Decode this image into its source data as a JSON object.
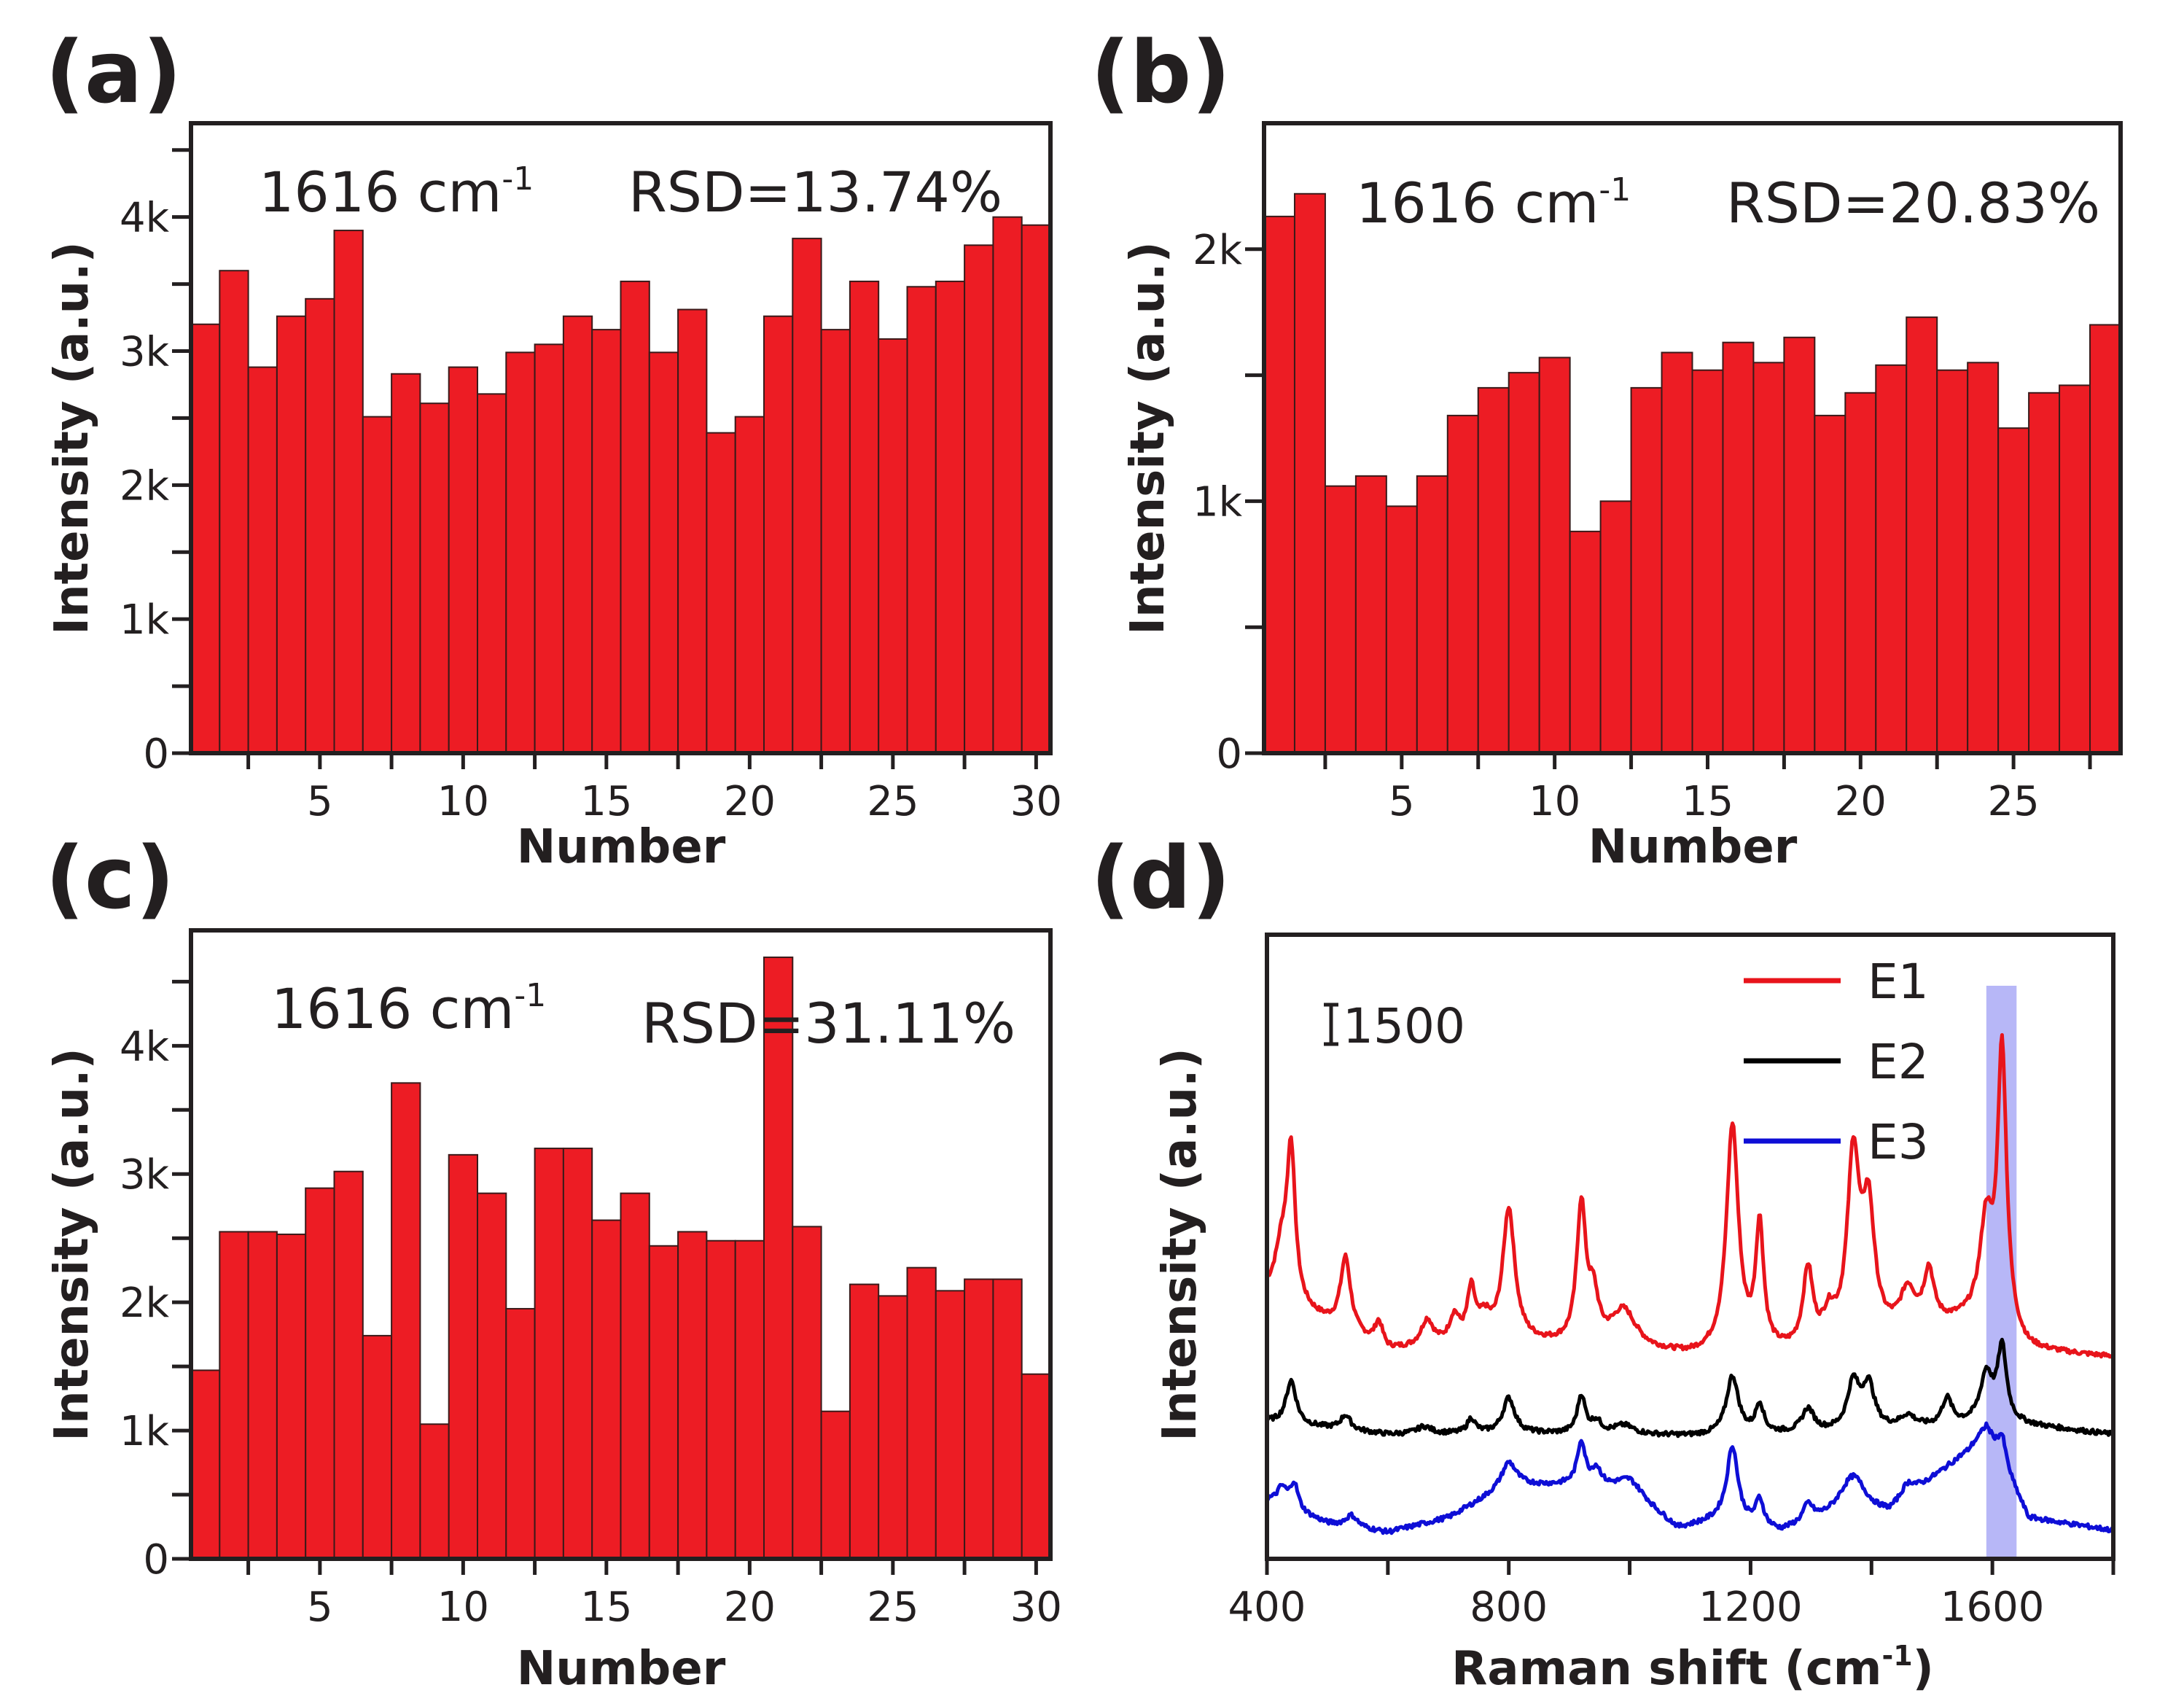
{
  "figure": {
    "colors": {
      "bar_fill": "#ed1c24",
      "text": "#231f20",
      "highlight_band": "#b3b3f7"
    }
  },
  "chart_data": [
    {
      "id": "a",
      "type": "bar",
      "panel_label": "(a)",
      "annotation_wavenumber": "1616 cm",
      "annotation_sup": "-1",
      "annotation_rsd": "RSD=13.74%",
      "xlabel": "Number",
      "ylabel": "Intensity (a.u.)",
      "xlim": [
        0.5,
        30.5
      ],
      "ylim": [
        0,
        4700
      ],
      "x_tick_labels": [
        "5",
        "10",
        "15",
        "20",
        "25",
        "30"
      ],
      "x_tick_values": [
        5,
        10,
        15,
        20,
        25,
        30
      ],
      "x_minor_ticks": [
        2.5,
        7.5,
        12.5,
        17.5,
        22.5,
        27.5
      ],
      "y_tick_labels": [
        "0",
        "1k",
        "2k",
        "3k",
        "4k"
      ],
      "y_tick_values": [
        0,
        1000,
        2000,
        3000,
        4000
      ],
      "y_minor_ticks": [
        500,
        1500,
        2500,
        3500,
        4500
      ],
      "categories": [
        1,
        2,
        3,
        4,
        5,
        6,
        7,
        8,
        9,
        10,
        11,
        12,
        13,
        14,
        15,
        16,
        17,
        18,
        19,
        20,
        21,
        22,
        23,
        24,
        25,
        26,
        27,
        28,
        29,
        30
      ],
      "values": [
        3200,
        3600,
        2880,
        3260,
        3390,
        3900,
        2510,
        2830,
        2610,
        2880,
        2680,
        2990,
        3050,
        3260,
        3160,
        3520,
        2990,
        3310,
        2390,
        2510,
        3260,
        3840,
        3160,
        3520,
        3090,
        3480,
        3520,
        3790,
        4000,
        3940
      ],
      "grid": false
    },
    {
      "id": "b",
      "type": "bar",
      "panel_label": "(b)",
      "annotation_wavenumber": "1616 cm",
      "annotation_sup": "-1",
      "annotation_rsd": "RSD=20.83%",
      "xlabel": "Number",
      "ylabel": "Intensity (a.u.)",
      "xlim": [
        0.5,
        28.5
      ],
      "ylim": [
        0,
        2500
      ],
      "x_tick_labels": [
        "5",
        "10",
        "15",
        "20",
        "25"
      ],
      "x_tick_values": [
        5,
        10,
        15,
        20,
        25
      ],
      "x_minor_ticks": [
        2.5,
        7.5,
        12.5,
        17.5,
        22.5,
        27.5
      ],
      "y_tick_labels": [
        "0",
        "1k",
        "2k"
      ],
      "y_tick_values": [
        0,
        1000,
        2000
      ],
      "y_minor_ticks": [
        500,
        1500
      ],
      "categories": [
        1,
        2,
        3,
        4,
        5,
        6,
        7,
        8,
        9,
        10,
        11,
        12,
        13,
        14,
        15,
        16,
        17,
        18,
        19,
        20,
        21,
        22,
        23,
        24,
        25,
        26,
        27,
        28
      ],
      "values": [
        2130,
        2220,
        1060,
        1100,
        980,
        1100,
        1340,
        1450,
        1510,
        1570,
        880,
        1000,
        1450,
        1590,
        1520,
        1630,
        1550,
        1650,
        1340,
        1430,
        1540,
        1730,
        1520,
        1550,
        1290,
        1430,
        1460,
        1700
      ],
      "grid": false
    },
    {
      "id": "c",
      "type": "bar",
      "panel_label": "(c)",
      "annotation_wavenumber": "1616 cm",
      "annotation_sup": "-1",
      "annotation_rsd": "RSD=31.11%",
      "xlabel": "Number",
      "ylabel": "Intensity (a.u.)",
      "xlim": [
        0.5,
        30.5
      ],
      "ylim": [
        0,
        4900
      ],
      "x_tick_labels": [
        "5",
        "10",
        "15",
        "20",
        "25",
        "30"
      ],
      "x_tick_values": [
        5,
        10,
        15,
        20,
        25,
        30
      ],
      "x_minor_ticks": [
        2.5,
        7.5,
        12.5,
        17.5,
        22.5,
        27.5
      ],
      "y_tick_labels": [
        "0",
        "1k",
        "2k",
        "3k",
        "4k"
      ],
      "y_tick_values": [
        0,
        1000,
        2000,
        3000,
        4000
      ],
      "y_minor_ticks": [
        500,
        1500,
        2500,
        3500,
        4500
      ],
      "categories": [
        1,
        2,
        3,
        4,
        5,
        6,
        7,
        8,
        9,
        10,
        11,
        12,
        13,
        14,
        15,
        16,
        17,
        18,
        19,
        20,
        21,
        22,
        23,
        24,
        25,
        26,
        27,
        28,
        29,
        30
      ],
      "values": [
        1470,
        2550,
        2550,
        2530,
        2890,
        3020,
        1740,
        3710,
        1050,
        3150,
        2850,
        1950,
        3200,
        3200,
        2640,
        2850,
        2440,
        2550,
        2480,
        2480,
        4690,
        2590,
        1150,
        2140,
        2050,
        2270,
        2090,
        2180,
        2180,
        1440
      ],
      "grid": false
    },
    {
      "id": "d",
      "type": "line",
      "panel_label": "(d)",
      "xlabel": "Raman shift (cm",
      "xlabel_sup": "-1",
      "xlabel_end": ")",
      "ylabel": "Intensity (a.u.)",
      "xlim": [
        400,
        1800
      ],
      "ylim": [
        0,
        21400
      ],
      "x_tick_labels": [
        "400",
        "800",
        "1200",
        "1600"
      ],
      "x_tick_values": [
        400,
        800,
        1200,
        1600
      ],
      "x_minor_ticks": [
        600,
        1000,
        1400,
        1800
      ],
      "scale_bar_label": "1500",
      "scale_bar_value": 1500,
      "highlight_range": [
        1590,
        1640
      ],
      "grid": false,
      "legend_position": "top-right",
      "series": [
        {
          "name": "E1",
          "color": "#e8141b",
          "baseline": [
            [
              400,
              9000
            ],
            [
              600,
              7100
            ],
            [
              800,
              7400
            ],
            [
              1000,
              7100
            ],
            [
              1100,
              6900
            ],
            [
              1300,
              7000
            ],
            [
              1500,
              7900
            ],
            [
              1580,
              8200
            ],
            [
              1660,
              7100
            ],
            [
              1800,
              6900
            ]
          ],
          "peaks": [
            [
              425,
              1800,
              14
            ],
            [
              440,
              5000,
              8
            ],
            [
              530,
              2500,
              10
            ],
            [
              585,
              800,
              8
            ],
            [
              665,
              900,
              12
            ],
            [
              710,
              900,
              10
            ],
            [
              738,
              1700,
              8
            ],
            [
              760,
              700,
              12
            ],
            [
              800,
              4500,
              12
            ],
            [
              920,
              4700,
              9
            ],
            [
              940,
              1500,
              10
            ],
            [
              990,
              1300,
              25
            ],
            [
              1170,
              7800,
              12
            ],
            [
              1215,
              4200,
              8
            ],
            [
              1295,
              2700,
              10
            ],
            [
              1330,
              900,
              12
            ],
            [
              1370,
              6200,
              12
            ],
            [
              1395,
              4200,
              12
            ],
            [
              1460,
              1300,
              15
            ],
            [
              1495,
              1800,
              10
            ],
            [
              1590,
              3200,
              12
            ],
            [
              1616,
              9600,
              9
            ]
          ]
        },
        {
          "name": "E2",
          "color": "#000000",
          "baseline": [
            [
              400,
              4700
            ],
            [
              600,
              4260
            ],
            [
              800,
              4300
            ],
            [
              1000,
              4250
            ],
            [
              1100,
              4200
            ],
            [
              1300,
              4300
            ],
            [
              1500,
              4500
            ],
            [
              1600,
              4700
            ],
            [
              1800,
              4260
            ]
          ],
          "peaks": [
            [
              440,
              1500,
              10
            ],
            [
              530,
              500,
              10
            ],
            [
              660,
              250,
              15
            ],
            [
              738,
              500,
              8
            ],
            [
              800,
              1200,
              12
            ],
            [
              920,
              1300,
              8
            ],
            [
              945,
              400,
              10
            ],
            [
              990,
              300,
              20
            ],
            [
              1170,
              2000,
              12
            ],
            [
              1215,
              1000,
              8
            ],
            [
              1295,
              800,
              12
            ],
            [
              1370,
              1600,
              12
            ],
            [
              1395,
              1500,
              12
            ],
            [
              1460,
              400,
              15
            ],
            [
              1525,
              900,
              10
            ],
            [
              1590,
              1600,
              12
            ],
            [
              1616,
              2500,
              9
            ]
          ]
        },
        {
          "name": "E3",
          "color": "#0e0ed6",
          "baseline": [
            [
              400,
              2000
            ],
            [
              500,
              1200
            ],
            [
              600,
              900
            ],
            [
              700,
              1400
            ],
            [
              800,
              2500
            ],
            [
              900,
              2500
            ],
            [
              1000,
              2200
            ],
            [
              1080,
              1000
            ],
            [
              1150,
              1300
            ],
            [
              1250,
              900
            ],
            [
              1350,
              1500
            ],
            [
              1430,
              1500
            ],
            [
              1500,
              2700
            ],
            [
              1560,
              3700
            ],
            [
              1590,
              4500
            ],
            [
              1660,
              1400
            ],
            [
              1800,
              970
            ]
          ],
          "peaks": [
            [
              425,
              600,
              10
            ],
            [
              445,
              900,
              8
            ],
            [
              540,
              400,
              12
            ],
            [
              800,
              800,
              15
            ],
            [
              920,
              1500,
              8
            ],
            [
              945,
              600,
              10
            ],
            [
              1000,
              500,
              30
            ],
            [
              1170,
              2600,
              11
            ],
            [
              1215,
              900,
              8
            ],
            [
              1295,
              600,
              10
            ],
            [
              1370,
              1300,
              25
            ],
            [
              1460,
              500,
              15
            ],
            [
              1616,
              900,
              8
            ]
          ]
        }
      ]
    }
  ]
}
